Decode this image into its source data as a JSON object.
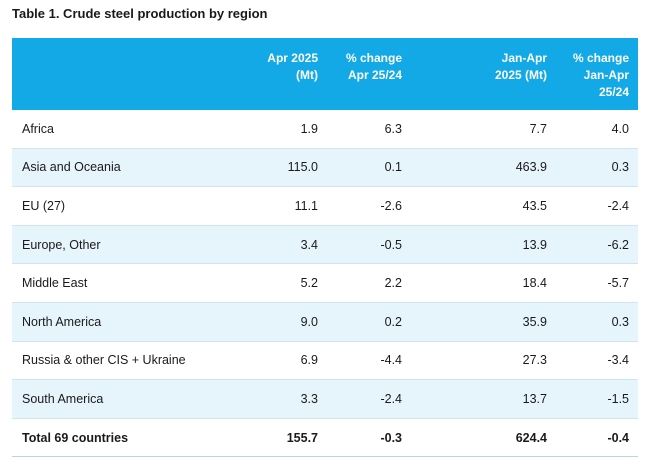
{
  "title": "Table 1. Crude steel production by region",
  "header": {
    "col1": [
      "Apr 2025",
      "(Mt)"
    ],
    "col2": [
      "% change",
      "Apr 25/24"
    ],
    "col3": [
      "Jan-Apr",
      "2025 (Mt)"
    ],
    "col4": [
      "% change",
      "Jan-Apr",
      "25/24"
    ]
  },
  "rows": [
    {
      "region": "Africa",
      "apr": "1.9",
      "apr_change": "6.3",
      "janapr": "7.7",
      "janapr_change": "4.0"
    },
    {
      "region": "Asia and Oceania",
      "apr": "115.0",
      "apr_change": "0.1",
      "janapr": "463.9",
      "janapr_change": "0.3"
    },
    {
      "region": "EU (27)",
      "apr": "11.1",
      "apr_change": "-2.6",
      "janapr": "43.5",
      "janapr_change": "-2.4"
    },
    {
      "region": "Europe, Other",
      "apr": "3.4",
      "apr_change": "-0.5",
      "janapr": "13.9",
      "janapr_change": "-6.2"
    },
    {
      "region": "Middle East",
      "apr": "5.2",
      "apr_change": "2.2",
      "janapr": "18.4",
      "janapr_change": "-5.7"
    },
    {
      "region": "North America",
      "apr": "9.0",
      "apr_change": "0.2",
      "janapr": "35.9",
      "janapr_change": "0.3"
    },
    {
      "region": "Russia & other CIS + Ukraine",
      "apr": "6.9",
      "apr_change": "-4.4",
      "janapr": "27.3",
      "janapr_change": "-3.4"
    },
    {
      "region": "South America",
      "apr": "3.3",
      "apr_change": "-2.4",
      "janapr": "13.7",
      "janapr_change": "-1.5"
    }
  ],
  "total": {
    "region": "Total 69 countries",
    "apr": "155.7",
    "apr_change": "-0.3",
    "janapr": "624.4",
    "janapr_change": "-0.4"
  },
  "colors": {
    "header_bg": "#12a9e6",
    "alt_row_bg": "#e6f4fb"
  }
}
